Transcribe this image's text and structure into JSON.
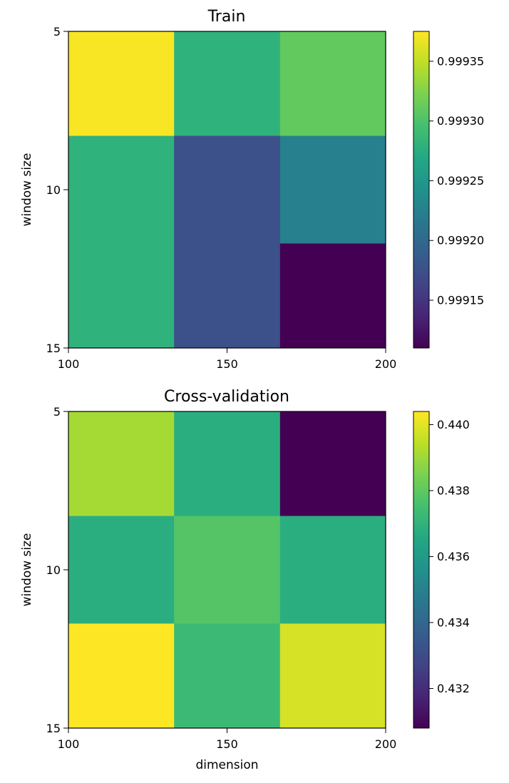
{
  "chart_data": [
    {
      "type": "heatmap",
      "title": "Train",
      "xlabel": "",
      "ylabel": "window size",
      "x_ticks": [
        "100",
        "150",
        "200"
      ],
      "y_ticks": [
        "5",
        "10",
        "15"
      ],
      "xlim": [
        100,
        200
      ],
      "ylim": [
        15,
        5
      ],
      "columns_x_range": [
        [
          100,
          133.3
        ],
        [
          133.3,
          166.7
        ],
        [
          166.7,
          200
        ]
      ],
      "rows_y_range": [
        [
          5,
          8.3
        ],
        [
          8.3,
          11.7
        ],
        [
          11.7,
          15
        ]
      ],
      "values": [
        [
          0.999373,
          0.99928,
          0.99931
        ],
        [
          0.99928,
          0.999175,
          0.999225
        ],
        [
          0.99928,
          0.999175,
          0.99911
        ]
      ],
      "colormap": "viridis",
      "colorbar": {
        "min": 0.99911,
        "max": 0.999375,
        "ticks": [
          0.99915,
          0.9992,
          0.99925,
          0.9993,
          0.99935
        ],
        "tick_labels": [
          "0.99915",
          "0.99920",
          "0.99925",
          "0.99930",
          "0.99935"
        ],
        "placement": "right"
      },
      "grid": false
    },
    {
      "type": "heatmap",
      "title": "Cross-validation",
      "xlabel": "dimension",
      "ylabel": "window size",
      "x_ticks": [
        "100",
        "150",
        "200"
      ],
      "y_ticks": [
        "5",
        "10",
        "15"
      ],
      "xlim": [
        100,
        200
      ],
      "ylim": [
        15,
        5
      ],
      "columns_x_range": [
        [
          100,
          133.3
        ],
        [
          133.3,
          166.7
        ],
        [
          166.7,
          200
        ]
      ],
      "rows_y_range": [
        [
          5,
          8.3
        ],
        [
          8.3,
          11.7
        ],
        [
          11.7,
          15
        ]
      ],
      "values": [
        [
          0.4391,
          0.4368,
          0.4308
        ],
        [
          0.4368,
          0.4378,
          0.4368
        ],
        [
          0.4404,
          0.4373,
          0.4398
        ]
      ],
      "colormap": "viridis",
      "colorbar": {
        "min": 0.4308,
        "max": 0.4404,
        "ticks": [
          0.432,
          0.434,
          0.436,
          0.438,
          0.44
        ],
        "tick_labels": [
          "0.432",
          "0.434",
          "0.436",
          "0.438",
          "0.440"
        ],
        "placement": "right"
      },
      "grid": false
    }
  ]
}
